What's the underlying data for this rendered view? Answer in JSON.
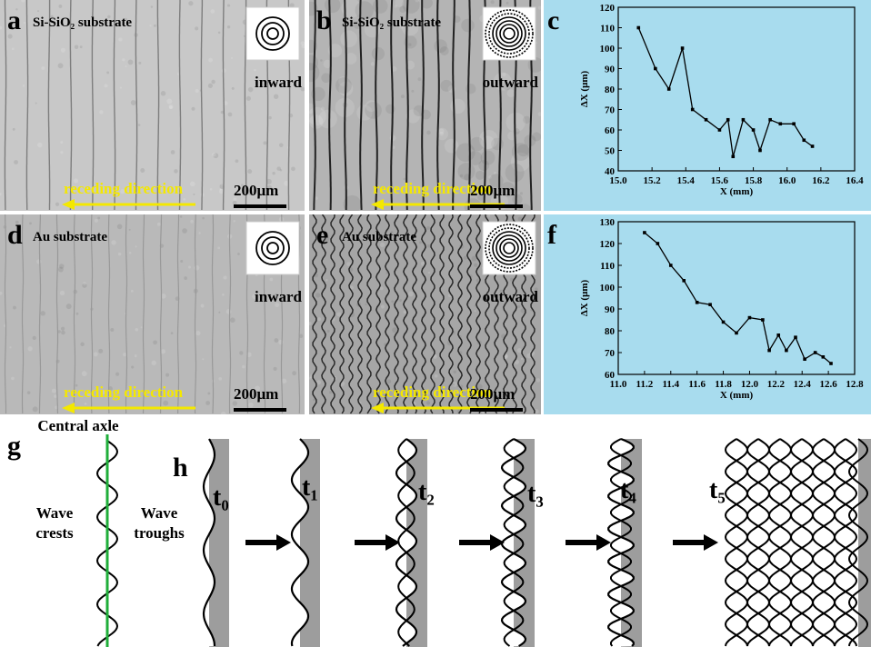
{
  "panels": [
    {
      "label": "a",
      "title": "Si-SiO₂ substrate",
      "inset_label": "inward",
      "direction": "receding direction",
      "scale_bar": "200μm"
    },
    {
      "label": "b",
      "title": "Si-SiO₂ substrate",
      "inset_label": "outward",
      "direction": "receding direction",
      "scale_bar": "200μm"
    },
    {
      "label": "d",
      "title": "Au substrate",
      "inset_label": "inward",
      "direction": "receding direction",
      "scale_bar": "200μm"
    },
    {
      "label": "e",
      "title": "Au substrate",
      "inset_label": "outward",
      "direction": "receding direction",
      "scale_bar": "200μm"
    }
  ],
  "chart_data": [
    {
      "type": "line",
      "panel_label": "c",
      "x_label": "X (mm)",
      "y_label": "ΔX (μm)",
      "background": "#a8dcee",
      "x": [
        15.12,
        15.22,
        15.3,
        15.38,
        15.44,
        15.52,
        15.6,
        15.65,
        15.68,
        15.74,
        15.8,
        15.84,
        15.9,
        15.96,
        16.04,
        16.1,
        16.15
      ],
      "series": [
        {
          "color": "#000000",
          "values": [
            110,
            90,
            80,
            100,
            70,
            65,
            60,
            65,
            47,
            65,
            60,
            50,
            65,
            63,
            63,
            55,
            52
          ]
        }
      ],
      "xlim": [
        15.0,
        16.4
      ],
      "xticks": [
        {
          "value": 15.0,
          "label": "15.0"
        },
        15.2,
        15.4,
        15.6,
        15.8,
        {
          "value": 16.0,
          "label": "16.0"
        },
        16.2,
        16.4
      ],
      "ylim": [
        40,
        120
      ],
      "yticks": [
        40,
        50,
        60,
        70,
        80,
        90,
        100,
        110,
        120
      ]
    },
    {
      "type": "line",
      "panel_label": "f",
      "x_label": "X (mm)",
      "y_label": "ΔX (μm)",
      "background": "#a8dcee",
      "x": [
        11.2,
        11.3,
        11.4,
        11.5,
        11.6,
        11.7,
        11.8,
        11.9,
        12.0,
        12.1,
        12.15,
        12.22,
        12.28,
        12.35,
        12.42,
        12.5,
        12.56,
        12.62
      ],
      "series": [
        {
          "color": "#000000",
          "values": [
            125,
            120,
            110,
            103,
            93,
            92,
            84,
            79,
            86,
            85,
            71,
            78,
            71,
            77,
            67,
            70,
            68,
            65
          ]
        }
      ],
      "xlim": [
        11.0,
        12.8
      ],
      "xticks": [
        {
          "value": 11.0,
          "label": "11.0"
        },
        11.2,
        11.4,
        11.6,
        11.8,
        {
          "value": 12.0,
          "label": "12.0"
        },
        12.2,
        12.4,
        12.6,
        12.8
      ],
      "ylim": [
        60,
        130
      ],
      "yticks": [
        60,
        70,
        80,
        90,
        100,
        110,
        120,
        130
      ]
    }
  ],
  "schematic": {
    "g": {
      "label": "g",
      "axis_label": "Central axle",
      "crests": [
        "Wave",
        "crests"
      ],
      "troughs": [
        "Wave",
        "troughs"
      ]
    },
    "h": {
      "label": "h",
      "steps": [
        "t₀",
        "t₁",
        "t₂",
        "t₃",
        "t₄",
        "t₅"
      ]
    }
  }
}
